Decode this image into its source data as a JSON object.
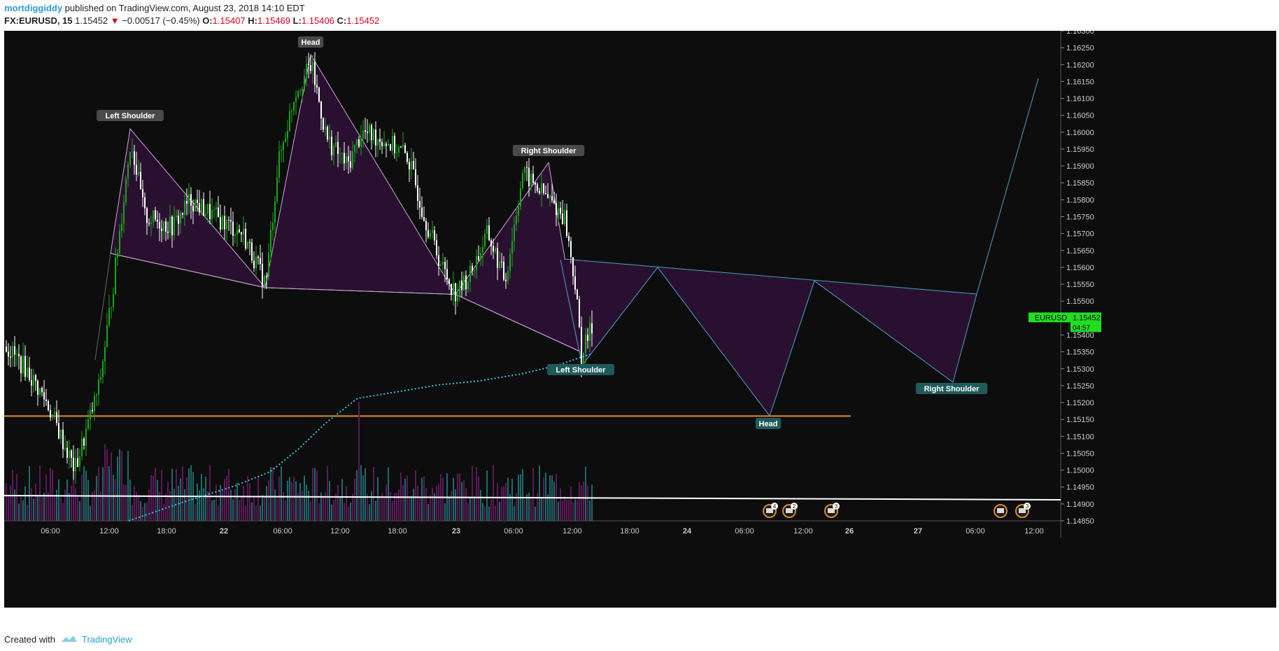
{
  "header": {
    "author": "mortdiggiddy",
    "published": "published on TradingView.com, August 23, 2018 14:10 EDT",
    "symbol": "FX:EURUSD, 15",
    "last": "1.15452",
    "change": "−0.00517 (−0.45%)",
    "o_label": "O:",
    "o_value": "1.15407",
    "h_label": "H:",
    "h_value": "1.15469",
    "l_label": "L:",
    "l_value": "1.15406",
    "c_label": "C:",
    "c_value": "1.15452"
  },
  "footer": {
    "created_with": "Created with",
    "brand": "TradingView"
  },
  "colors": {
    "background": "#0d0d0d",
    "up_candle": "#19a61a",
    "down_candle": "#ffffff",
    "pattern_fill": "#2a1030",
    "pattern_stroke_past": "#c9a8d6",
    "pattern_stroke_future": "#4aa3c8",
    "support_line": "#e08a30",
    "vwap": "#35c6d8",
    "volume_up": "#1e6a6a",
    "volume_down": "#5a1a5a",
    "price_tag": "#22dd22"
  },
  "chart_data": {
    "type": "candlestick",
    "symbol": "FX:EURUSD",
    "interval": "15",
    "ylim": [
      1.1485,
      1.163
    ],
    "y_ticks": [
      "1.16300",
      "1.16250",
      "1.16200",
      "1.16150",
      "1.16100",
      "1.16050",
      "1.16000",
      "1.15950",
      "1.15900",
      "1.15850",
      "1.15800",
      "1.15750",
      "1.15700",
      "1.15650",
      "1.15600",
      "1.15550",
      "1.15500",
      "1.15450",
      "1.15400",
      "1.15350",
      "1.15300",
      "1.15250",
      "1.15200",
      "1.15150",
      "1.15100",
      "1.15050",
      "1.15000",
      "1.14950",
      "1.14900",
      "1.14850"
    ],
    "x_ticks": [
      "06:00",
      "12:00",
      "18:00",
      "22",
      "06:00",
      "12:00",
      "18:00",
      "23",
      "06:00",
      "12:00",
      "18:00",
      "24",
      "06:00",
      "12:00",
      "26",
      "27",
      "06:00",
      "12:00"
    ],
    "last_price": "1.15452",
    "price_tag_symbol": "EURUSD",
    "countdown": "04:57",
    "support_level": 1.1516,
    "pattern_past": {
      "points": [
        {
          "label": "Left Shoulder",
          "price": 1.1601
        },
        {
          "label": "",
          "price": 1.1554
        },
        {
          "label": "Head",
          "price": 1.1623
        },
        {
          "label": "",
          "price": 1.1552
        },
        {
          "label": "Right Shoulder",
          "price": 1.1591
        },
        {
          "label": "",
          "price": 1.1535
        }
      ]
    },
    "pattern_projected": {
      "points": [
        {
          "label": "Left Shoulder",
          "price": 1.1531
        },
        {
          "label": "",
          "price": 1.156
        },
        {
          "label": "Head",
          "price": 1.1516
        },
        {
          "label": "",
          "price": 1.1556
        },
        {
          "label": "Right Shoulder",
          "price": 1.1526
        }
      ]
    },
    "annotations": [
      "Left Shoulder",
      "Head",
      "Right Shoulder",
      "Left Shoulder",
      "Head",
      "Right Shoulder"
    ],
    "event_badges": [
      "4",
      "2",
      "3",
      "",
      "3"
    ]
  }
}
